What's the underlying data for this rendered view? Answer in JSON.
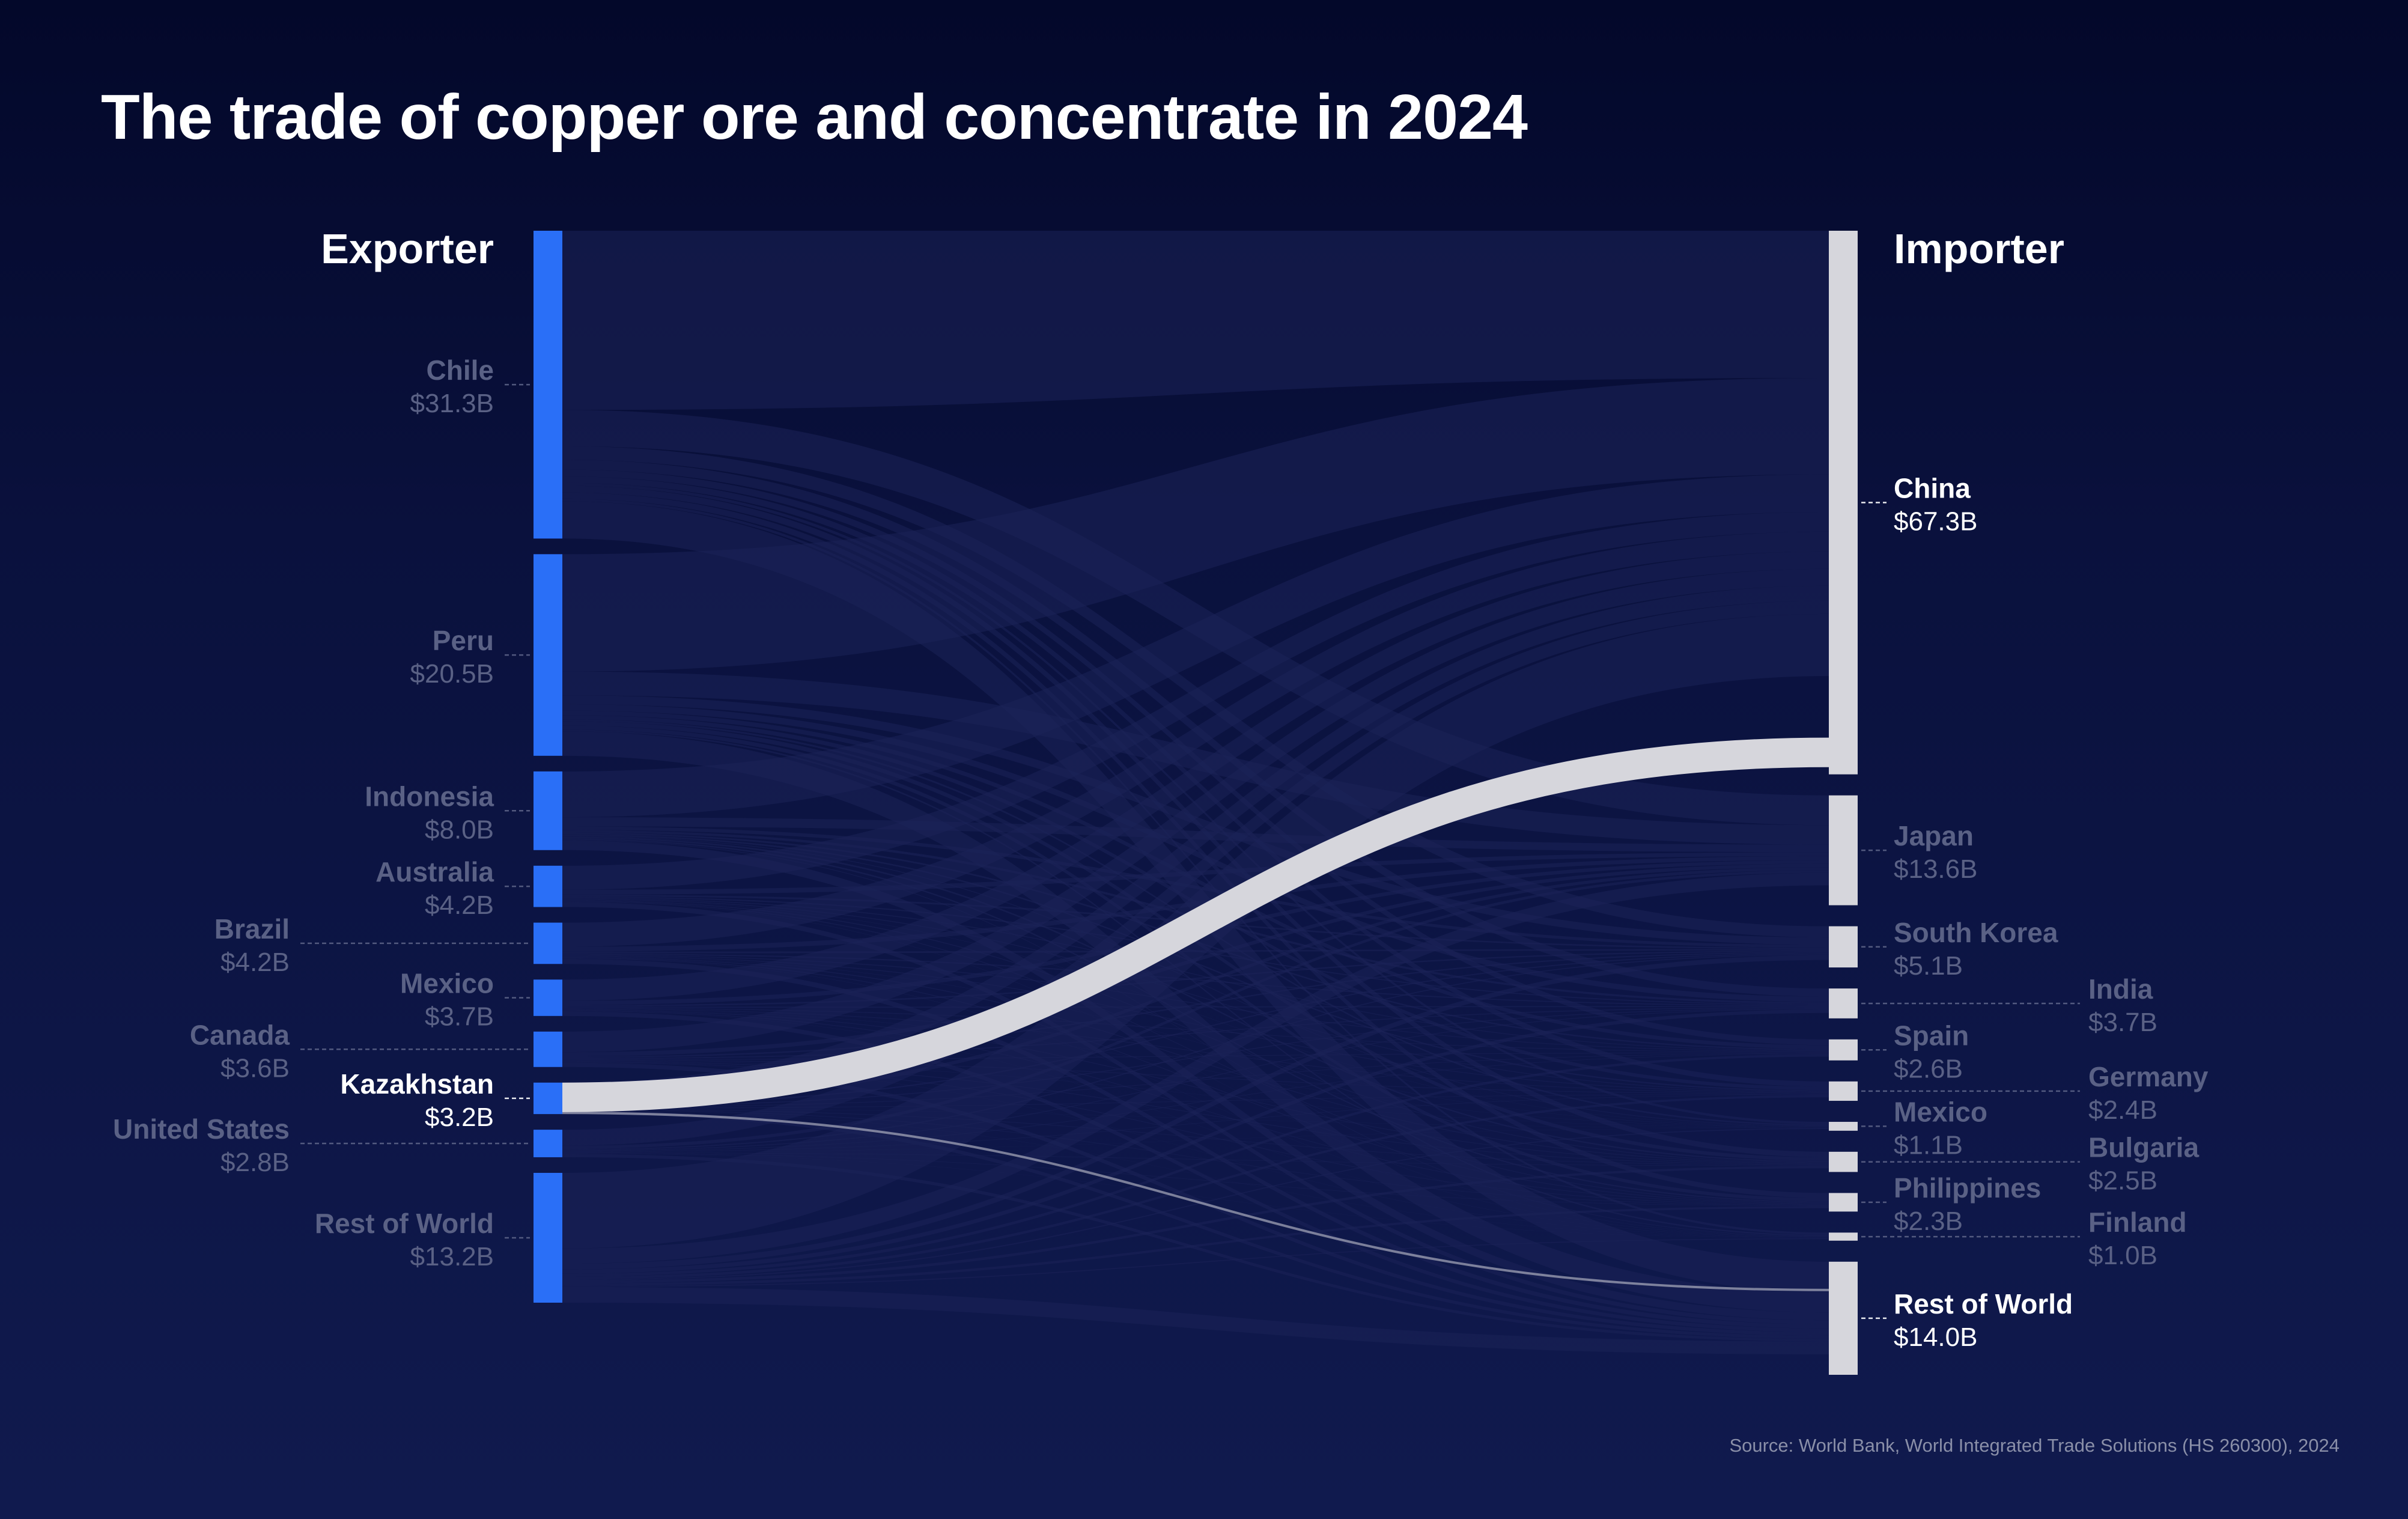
{
  "title": "The trade of copper ore and concentrate in 2024",
  "source": "Source: World Bank, World Integrated Trade Solutions (HS 260300), 2024",
  "colors": {
    "exporter_bar": "#2a6ff7",
    "importer_bar": "#d6d6dc",
    "highlight_flow": "#d6d6dc",
    "label_highlight": "#ffffff",
    "label_dim": "#5a6185",
    "flow_dim": "#1b2358"
  },
  "chart_data": {
    "type": "sankey",
    "title": "The trade of copper ore and concentrate in 2024",
    "unit": "USD billions",
    "left_header": "Exporter",
    "right_header": "Importer",
    "highlighted_node": "Kazakhstan",
    "exporters": [
      {
        "name": "Chile",
        "value_label": "$31.3B",
        "value": 31.3
      },
      {
        "name": "Peru",
        "value_label": "$20.5B",
        "value": 20.5
      },
      {
        "name": "Indonesia",
        "value_label": "$8.0B",
        "value": 8.0
      },
      {
        "name": "Australia",
        "value_label": "$4.2B",
        "value": 4.2
      },
      {
        "name": "Brazil",
        "value_label": "$4.2B",
        "value": 4.2
      },
      {
        "name": "Mexico",
        "value_label": "$3.7B",
        "value": 3.7
      },
      {
        "name": "Canada",
        "value_label": "$3.6B",
        "value": 3.6
      },
      {
        "name": "Kazakhstan",
        "value_label": "$3.2B",
        "value": 3.2
      },
      {
        "name": "United States",
        "value_label": "$2.8B",
        "value": 2.8
      },
      {
        "name": "Rest of World",
        "value_label": "$13.2B",
        "value": 13.2
      }
    ],
    "importers": [
      {
        "name": "China",
        "value_label": "$67.3B",
        "value": 67.3
      },
      {
        "name": "Japan",
        "value_label": "$13.6B",
        "value": 13.6
      },
      {
        "name": "South Korea",
        "value_label": "$5.1B",
        "value": 5.1
      },
      {
        "name": "India",
        "value_label": "$3.7B",
        "value": 3.7
      },
      {
        "name": "Spain",
        "value_label": "$2.6B",
        "value": 2.6
      },
      {
        "name": "Germany",
        "value_label": "$2.4B",
        "value": 2.4
      },
      {
        "name": "Mexico",
        "value_label": "$1.1B",
        "value": 1.1
      },
      {
        "name": "Bulgaria",
        "value_label": "$2.5B",
        "value": 2.5
      },
      {
        "name": "Philippines",
        "value_label": "$2.3B",
        "value": 2.3
      },
      {
        "name": "Finland",
        "value_label": "$1.0B",
        "value": 1.0
      },
      {
        "name": "Rest of World",
        "value_label": "$14.0B",
        "value": 14.0
      }
    ],
    "highlighted_flows": [
      {
        "from": "Kazakhstan",
        "to": "China",
        "value": 3.0
      },
      {
        "from": "Kazakhstan",
        "to": "Rest of World",
        "value": 0.2
      }
    ]
  }
}
